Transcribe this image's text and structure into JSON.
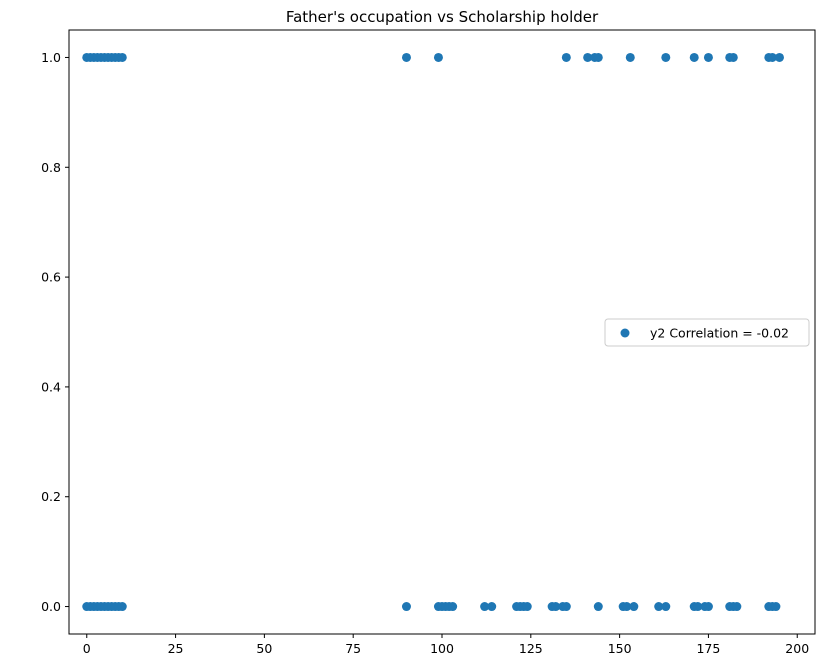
{
  "chart_data": {
    "type": "scatter",
    "title": "Father's occupation vs Scholarship holder",
    "xlabel": "",
    "ylabel": "",
    "xlim": [
      -5,
      205
    ],
    "ylim": [
      -0.05,
      1.05
    ],
    "x_ticks": [
      0,
      25,
      50,
      75,
      100,
      125,
      150,
      175,
      200
    ],
    "y_ticks": [
      0.0,
      0.2,
      0.4,
      0.6,
      0.8,
      1.0
    ],
    "x_tick_labels": [
      "0",
      "25",
      "50",
      "75",
      "100",
      "125",
      "150",
      "175",
      "200"
    ],
    "y_tick_labels": [
      "0.0",
      "0.2",
      "0.4",
      "0.6",
      "0.8",
      "1.0"
    ],
    "grid": false,
    "legend": {
      "position": "center-right",
      "entries": [
        "y2 Correlation = -0.02"
      ]
    },
    "marker_color": "#1f77b4",
    "series": [
      {
        "name": "y2 Correlation = -0.02",
        "points": [
          [
            0,
            1
          ],
          [
            1,
            1
          ],
          [
            2,
            1
          ],
          [
            3,
            1
          ],
          [
            4,
            1
          ],
          [
            5,
            1
          ],
          [
            6,
            1
          ],
          [
            7,
            1
          ],
          [
            8,
            1
          ],
          [
            9,
            1
          ],
          [
            10,
            1
          ],
          [
            90,
            1
          ],
          [
            99,
            1
          ],
          [
            135,
            1
          ],
          [
            141,
            1
          ],
          [
            143,
            1
          ],
          [
            144,
            1
          ],
          [
            153,
            1
          ],
          [
            163,
            1
          ],
          [
            171,
            1
          ],
          [
            175,
            1
          ],
          [
            181,
            1
          ],
          [
            182,
            1
          ],
          [
            192,
            1
          ],
          [
            193,
            1
          ],
          [
            195,
            1
          ],
          [
            0,
            0
          ],
          [
            1,
            0
          ],
          [
            2,
            0
          ],
          [
            3,
            0
          ],
          [
            4,
            0
          ],
          [
            5,
            0
          ],
          [
            6,
            0
          ],
          [
            7,
            0
          ],
          [
            8,
            0
          ],
          [
            9,
            0
          ],
          [
            10,
            0
          ],
          [
            90,
            0
          ],
          [
            99,
            0
          ],
          [
            100,
            0
          ],
          [
            101,
            0
          ],
          [
            102,
            0
          ],
          [
            103,
            0
          ],
          [
            112,
            0
          ],
          [
            114,
            0
          ],
          [
            121,
            0
          ],
          [
            122,
            0
          ],
          [
            123,
            0
          ],
          [
            124,
            0
          ],
          [
            131,
            0
          ],
          [
            132,
            0
          ],
          [
            134,
            0
          ],
          [
            135,
            0
          ],
          [
            144,
            0
          ],
          [
            151,
            0
          ],
          [
            152,
            0
          ],
          [
            154,
            0
          ],
          [
            161,
            0
          ],
          [
            163,
            0
          ],
          [
            171,
            0
          ],
          [
            172,
            0
          ],
          [
            174,
            0
          ],
          [
            175,
            0
          ],
          [
            181,
            0
          ],
          [
            182,
            0
          ],
          [
            183,
            0
          ],
          [
            192,
            0
          ],
          [
            193,
            0
          ],
          [
            194,
            0
          ]
        ]
      }
    ]
  }
}
